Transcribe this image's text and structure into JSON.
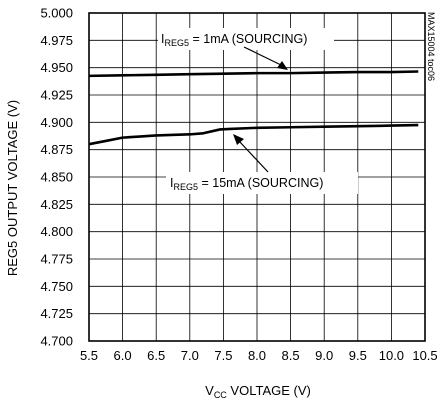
{
  "chart_data": {
    "type": "line",
    "xlabel": "VCC VOLTAGE (V)",
    "xlabel_main": "V",
    "xlabel_sub": "CC",
    "xlabel_rest": " VOLTAGE (V)",
    "ylabel": "REG5 OUTPUT VOLTAGE (V)",
    "xlim": [
      5.5,
      10.5
    ],
    "ylim": [
      4.7,
      5.0
    ],
    "xticks": [
      "5.5",
      "6.0",
      "6.5",
      "7.0",
      "7.5",
      "8.0",
      "8.5",
      "9.0",
      "9.5",
      "10.0",
      "10.5"
    ],
    "yticks": [
      "5.000",
      "4.975",
      "4.950",
      "4.925",
      "4.900",
      "4.875",
      "4.850",
      "4.825",
      "4.800",
      "4.775",
      "4.750",
      "4.725",
      "4.700"
    ],
    "grid": true,
    "figure_id": "MAX15004 toc06",
    "series": [
      {
        "label_main": "I",
        "label_sub": "REG5",
        "label_rest": " = 1mA (SOURCING)",
        "x": [
          5.5,
          6.0,
          6.5,
          7.0,
          7.5,
          8.0,
          8.5,
          9.0,
          9.5,
          10.0,
          10.4
        ],
        "y": [
          4.9425,
          4.943,
          4.9435,
          4.944,
          4.9445,
          4.945,
          4.945,
          4.9455,
          4.946,
          4.946,
          4.9465
        ]
      },
      {
        "label_main": "I",
        "label_sub": "REG5",
        "label_rest": " = 15mA (SOURCING)",
        "x": [
          5.5,
          5.75,
          6.0,
          6.25,
          6.5,
          7.0,
          7.2,
          7.45,
          7.6,
          8.0,
          8.5,
          9.0,
          9.5,
          10.0,
          10.4
        ],
        "y": [
          4.88,
          4.883,
          4.886,
          4.887,
          4.888,
          4.889,
          4.89,
          4.8935,
          4.894,
          4.895,
          4.8955,
          4.896,
          4.8965,
          4.897,
          4.8975
        ]
      }
    ]
  }
}
